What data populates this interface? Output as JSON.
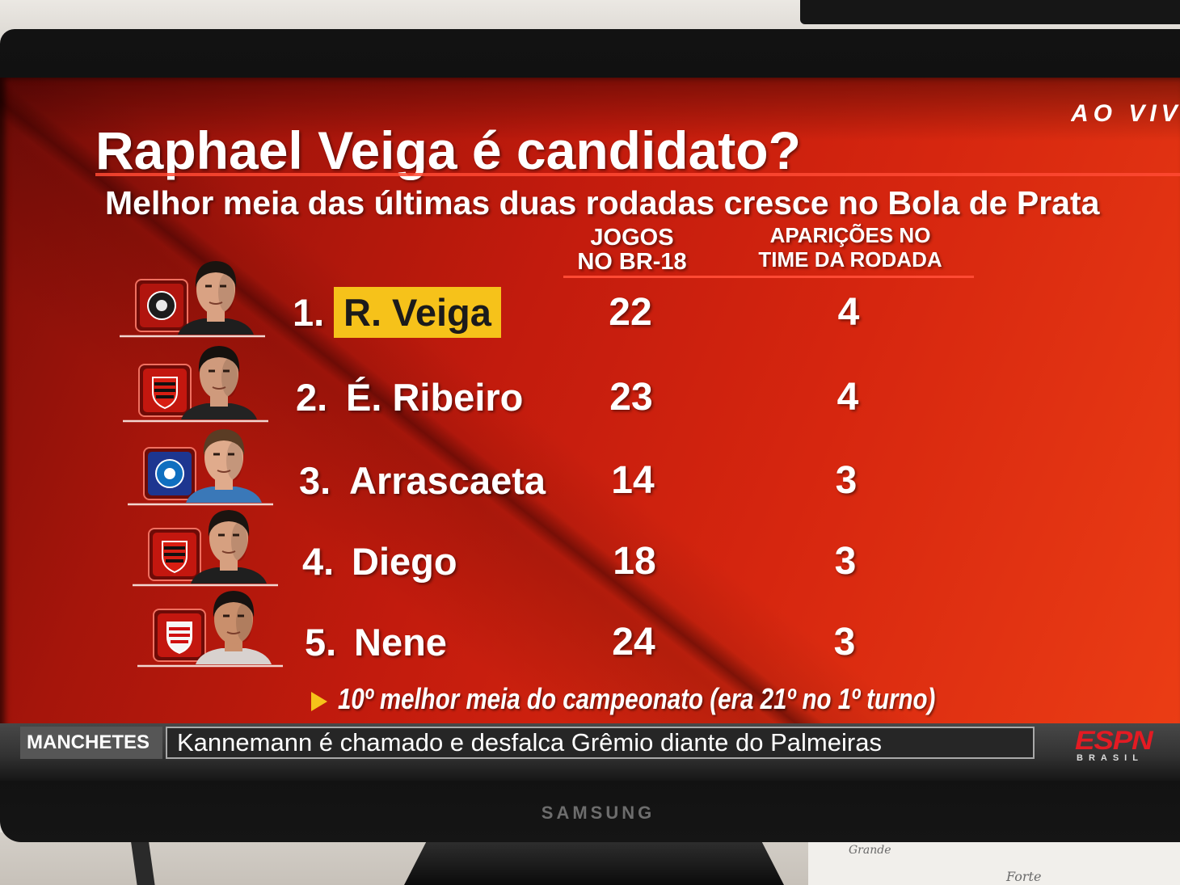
{
  "broadcast": {
    "live_label": "AO VIVO"
  },
  "title": "Raphael Veiga é candidato?",
  "subtitle": "Melhor meia das últimas duas rodadas cresce no Bola de Prata",
  "columns": {
    "games": {
      "line1": "JOGOS",
      "line2": "NO BR-18"
    },
    "appearances": {
      "line1": "APARIÇÕES NO",
      "line2": "TIME DA RODADA"
    }
  },
  "rows": [
    {
      "rank": "1.",
      "name": "R. Veiga",
      "games": 22,
      "appearances": 4,
      "highlighted": true,
      "badge_icon": "athletico-paranaense-badge-icon",
      "badge_color": "#b1150e",
      "emblem_color": "#1c1c1c",
      "emblem_accent": "#e9e9e9",
      "jersey_color": "#1e1e1e",
      "skin_color": "#d9a283",
      "hair_color": "#1a1410"
    },
    {
      "rank": "2.",
      "name": "É. Ribeiro",
      "games": 23,
      "appearances": 4,
      "highlighted": false,
      "badge_icon": "flamengo-badge-icon",
      "badge_color": "#c3170f",
      "emblem_color": "#d81e12",
      "emblem_accent": "#111111",
      "jersey_color": "#232323",
      "skin_color": "#cf9a7c",
      "hair_color": "#15110e"
    },
    {
      "rank": "3.",
      "name": "Arrascaeta",
      "games": 14,
      "appearances": 3,
      "highlighted": false,
      "badge_icon": "cruzeiro-badge-icon",
      "badge_color": "#1d3690",
      "emblem_color": "#0f6fc0",
      "emblem_accent": "#ffffff",
      "jersey_color": "#3a78b8",
      "skin_color": "#e0ab8c",
      "hair_color": "#5a3c24"
    },
    {
      "rank": "4.",
      "name": "Diego",
      "games": 18,
      "appearances": 3,
      "highlighted": false,
      "badge_icon": "flamengo-badge-icon",
      "badge_color": "#c3170f",
      "emblem_color": "#d81e12",
      "emblem_accent": "#111111",
      "jersey_color": "#1f1f1f",
      "skin_color": "#d6a080",
      "hair_color": "#1b1410"
    },
    {
      "rank": "5.",
      "name": "Nene",
      "games": 24,
      "appearances": 3,
      "highlighted": false,
      "badge_icon": "sao-paulo-badge-icon",
      "badge_color": "#c3170f",
      "emblem_color": "#f5f5f5",
      "emblem_accent": "#d01010",
      "jersey_color": "#d8d2cf",
      "skin_color": "#c98f6c",
      "hair_color": "#171210"
    }
  ],
  "note": "10º melhor meia do campeonato (era 21º no 1º turno)",
  "ticker": {
    "label": "MANCHETES",
    "headline": "Kannemann é chamado e desfalca Grêmio diante do Palmeiras"
  },
  "channel_logo": {
    "name": "ESPN",
    "sub": "BRASIL"
  },
  "tv_brand": "SAMSUNG",
  "desk_paper": {
    "word1": "Grande",
    "word2": "Forte"
  },
  "colors": {
    "highlight": "#f6c21a",
    "accent_line": "#ff4a34",
    "espn_red": "#e31b23",
    "screen_red": "#c21b0d"
  }
}
